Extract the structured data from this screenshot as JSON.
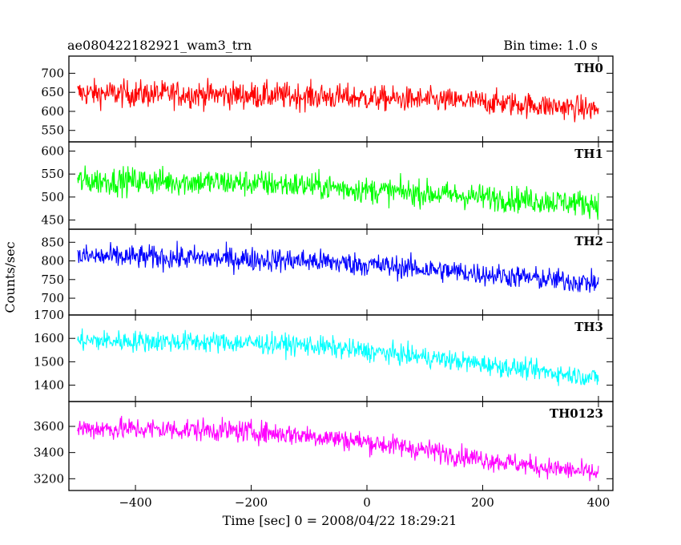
{
  "chart_data": {
    "type": "line",
    "title": "ae080422182921_wam3_trn",
    "subtitle": "Bin time: 1.0 s",
    "xlabel": "Time [sec] 0 = 2008/04/22 18:29:21",
    "ylabel": "Counts/sec",
    "xlim": [
      -515,
      425
    ],
    "x_ticks": [
      -400,
      -200,
      0,
      200,
      400
    ],
    "x_tick_labels": [
      "−400",
      "−200",
      "0",
      "200",
      "400"
    ],
    "bin_time_s": 1.0,
    "x_range_data": [
      -500,
      400
    ],
    "panels": [
      {
        "name": "TH0",
        "color": "#ff0000",
        "ylim": [
          520,
          745
        ],
        "y_ticks": [
          550,
          600,
          650,
          700
        ],
        "x": [
          -500,
          -400,
          -300,
          -200,
          -100,
          0,
          100,
          200,
          300,
          400
        ],
        "mean": [
          648,
          646,
          645,
          642,
          640,
          635,
          630,
          625,
          615,
          605
        ],
        "spread": [
          35,
          35,
          35,
          35,
          35,
          33,
          32,
          32,
          32,
          32
        ]
      },
      {
        "name": "TH1",
        "color": "#00ff00",
        "ylim": [
          430,
          620
        ],
        "y_ticks": [
          450,
          500,
          550,
          600
        ],
        "x": [
          -500,
          -400,
          -300,
          -200,
          -100,
          0,
          100,
          200,
          300,
          400
        ],
        "mean": [
          535,
          535,
          533,
          530,
          525,
          515,
          508,
          500,
          492,
          485
        ],
        "spread": [
          30,
          30,
          30,
          29,
          29,
          28,
          28,
          28,
          28,
          28
        ]
      },
      {
        "name": "TH2",
        "color": "#0000ff",
        "ylim": [
          655,
          885
        ],
        "y_ticks": [
          700,
          750,
          800,
          850
        ],
        "x": [
          -500,
          -400,
          -300,
          -200,
          -100,
          0,
          100,
          200,
          300,
          400
        ],
        "mean": [
          812,
          810,
          808,
          805,
          800,
          790,
          778,
          765,
          752,
          740
        ],
        "spread": [
          32,
          32,
          32,
          32,
          32,
          31,
          31,
          30,
          30,
          30
        ]
      },
      {
        "name": "TH3",
        "color": "#00ffff",
        "ylim": [
          1330,
          1700
        ],
        "y_ticks": [
          1400,
          1500,
          1600,
          1700
        ],
        "x": [
          -500,
          -400,
          -300,
          -200,
          -100,
          0,
          100,
          200,
          300,
          400
        ],
        "mean": [
          1590,
          1588,
          1585,
          1580,
          1570,
          1545,
          1520,
          1490,
          1460,
          1430
        ],
        "spread": [
          45,
          45,
          45,
          44,
          44,
          43,
          42,
          42,
          41,
          40
        ]
      },
      {
        "name": "TH0123",
        "color": "#ff00ff",
        "ylim": [
          3110,
          3790
        ],
        "y_ticks": [
          3200,
          3400,
          3600
        ],
        "x": [
          -500,
          -400,
          -300,
          -200,
          -100,
          0,
          100,
          200,
          300,
          400
        ],
        "mean": [
          3585,
          3580,
          3575,
          3560,
          3530,
          3480,
          3420,
          3350,
          3290,
          3240
        ],
        "spread": [
          85,
          85,
          85,
          84,
          83,
          82,
          80,
          78,
          76,
          75
        ]
      }
    ]
  }
}
